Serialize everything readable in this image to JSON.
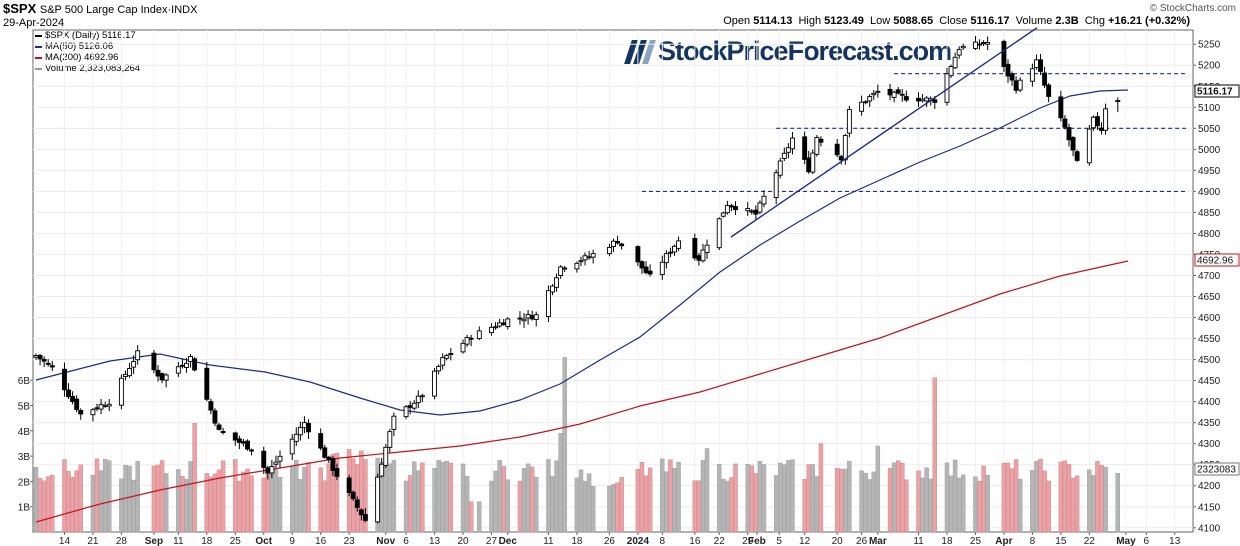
{
  "header": {
    "symbol": "$SPX",
    "name": "S&P 500 Large Cap Index",
    "exchange": "INDX",
    "date": "29-Apr-2024",
    "open_label": "Open",
    "open": "5114.13",
    "high_label": "High",
    "high": "5123.49",
    "low_label": "Low",
    "low": "5088.65",
    "close_label": "Close",
    "close": "5116.17",
    "volume_label": "Volume",
    "volume": "2.3B",
    "chg_label": "Chg",
    "chg": "+16.21 (+0.32%)",
    "source": "© StockCharts.com"
  },
  "watermark": "StockPriceForecast.com",
  "legend": [
    {
      "text": "$SPX (Daily) 5116.17",
      "color": "#000000"
    },
    {
      "text": "MA(50) 5126.06",
      "color": "#1f2a8c"
    },
    {
      "text": "MA(200) 4692.96",
      "color": "#c0141e"
    },
    {
      "text": "Volume 2,323,083,264",
      "color": "#999999"
    }
  ],
  "price_tags": {
    "close": "5116.17",
    "ma200": "4692.96",
    "volume": "2323083"
  },
  "chart_data": {
    "type": "candlestick",
    "title": "$SPX S&P 500 Large Cap Index",
    "y_ticks": [
      4100,
      4150,
      4200,
      4250,
      4300,
      4350,
      4400,
      4450,
      4500,
      4550,
      4600,
      4650,
      4700,
      4750,
      4800,
      4850,
      4900,
      4950,
      5000,
      5050,
      5100,
      5150,
      5200,
      5250
    ],
    "ylim": [
      4090,
      5285
    ],
    "volume_ticks": [
      "1B",
      "2B",
      "3B",
      "4B",
      "5B",
      "6B"
    ],
    "x_ticks": [
      "14",
      "21",
      "28",
      "Sep",
      "11",
      "18",
      "25",
      "Oct",
      "9",
      "16",
      "23",
      "Nov",
      "6",
      "13",
      "20",
      "27",
      "Dec",
      "11",
      "18",
      "26",
      "2024",
      "8",
      "16",
      "22",
      "29",
      "Feb",
      "5",
      "12",
      "20",
      "26",
      "Mar",
      "11",
      "18",
      "25",
      "Apr",
      "8",
      "15",
      "22",
      "May",
      "6",
      "13"
    ],
    "bold_ticks": [
      "Sep",
      "Oct",
      "Nov",
      "Dec",
      "2024",
      "Feb",
      "Mar",
      "Apr",
      "May"
    ],
    "horizontal_levels": [
      5180,
      5050,
      4900
    ],
    "trendline": {
      "start": {
        "date": "2024-01-31",
        "value": 4815
      },
      "end": {
        "date": "2024-04-03",
        "value": 5275
      }
    },
    "close_keyframes": [
      {
        "date": "2023-08-07",
        "value": 4510
      },
      {
        "date": "2023-08-11",
        "value": 4480
      },
      {
        "date": "2023-08-18",
        "value": 4370
      },
      {
        "date": "2023-08-25",
        "value": 4400
      },
      {
        "date": "2023-09-01",
        "value": 4515
      },
      {
        "date": "2023-09-07",
        "value": 4455
      },
      {
        "date": "2023-09-14",
        "value": 4505
      },
      {
        "date": "2023-09-21",
        "value": 4330
      },
      {
        "date": "2023-09-29",
        "value": 4288
      },
      {
        "date": "2023-10-03",
        "value": 4230
      },
      {
        "date": "2023-10-12",
        "value": 4350
      },
      {
        "date": "2023-10-20",
        "value": 4225
      },
      {
        "date": "2023-10-27",
        "value": 4118
      },
      {
        "date": "2023-11-03",
        "value": 4360
      },
      {
        "date": "2023-11-10",
        "value": 4415
      },
      {
        "date": "2023-11-15",
        "value": 4500
      },
      {
        "date": "2023-11-22",
        "value": 4555
      },
      {
        "date": "2023-12-01",
        "value": 4595
      },
      {
        "date": "2023-12-08",
        "value": 4605
      },
      {
        "date": "2023-12-14",
        "value": 4720
      },
      {
        "date": "2023-12-21",
        "value": 4745
      },
      {
        "date": "2023-12-28",
        "value": 4783
      },
      {
        "date": "2024-01-05",
        "value": 4697
      },
      {
        "date": "2024-01-12",
        "value": 4784
      },
      {
        "date": "2024-01-17",
        "value": 4740
      },
      {
        "date": "2024-01-24",
        "value": 4870
      },
      {
        "date": "2024-01-31",
        "value": 4846
      },
      {
        "date": "2024-02-09",
        "value": 5026
      },
      {
        "date": "2024-02-13",
        "value": 4953
      },
      {
        "date": "2024-02-15",
        "value": 5030
      },
      {
        "date": "2024-02-21",
        "value": 4981
      },
      {
        "date": "2024-02-23",
        "value": 5090
      },
      {
        "date": "2024-03-01",
        "value": 5137
      },
      {
        "date": "2024-03-08",
        "value": 5123
      },
      {
        "date": "2024-03-15",
        "value": 5117
      },
      {
        "date": "2024-03-21",
        "value": 5241
      },
      {
        "date": "2024-03-28",
        "value": 5254
      },
      {
        "date": "2024-04-04",
        "value": 5147
      },
      {
        "date": "2024-04-09",
        "value": 5209
      },
      {
        "date": "2024-04-12",
        "value": 5123
      },
      {
        "date": "2024-04-16",
        "value": 5051
      },
      {
        "date": "2024-04-19",
        "value": 4967
      },
      {
        "date": "2024-04-23",
        "value": 5070
      },
      {
        "date": "2024-04-25",
        "value": 5048
      },
      {
        "date": "2024-04-26",
        "value": 5100
      },
      {
        "date": "2024-04-29",
        "value": 5116
      }
    ],
    "last_bar": {
      "date": "2024-04-29",
      "open": 5114.13,
      "high": 5123.49,
      "low": 5088.65,
      "close": 5116.17
    },
    "volume_spikes": [
      {
        "date": "2023-12-15",
        "value": 6.9
      },
      {
        "date": "2024-03-15",
        "value": 6.1
      }
    ]
  }
}
